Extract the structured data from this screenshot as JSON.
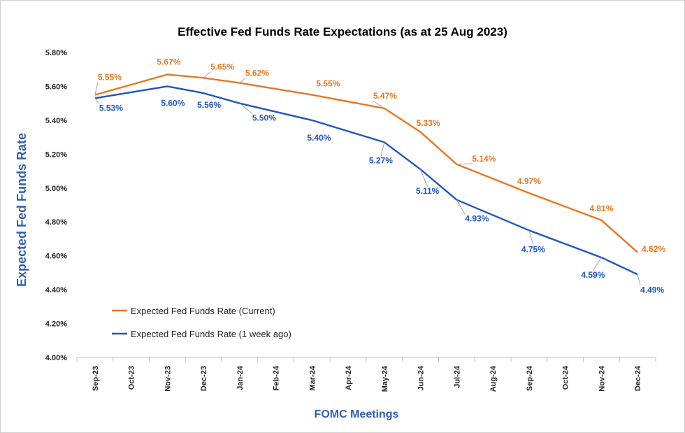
{
  "chart_data": {
    "type": "line",
    "title": "Effective Fed Funds Rate Expectations (as at 25 Aug 2023)",
    "xlabel": "FOMC Meetings",
    "ylabel": "Expected Fed Funds Rate",
    "ylim": [
      4.0,
      5.8
    ],
    "ytick_step": 0.2,
    "ytick_labels": [
      "4.00%",
      "4.20%",
      "4.40%",
      "4.60%",
      "4.80%",
      "5.00%",
      "5.20%",
      "5.40%",
      "5.60%",
      "5.80%"
    ],
    "categories": [
      "Sep-23",
      "Oct-23",
      "Nov-23",
      "Dec-23",
      "Jan-24",
      "Feb-24",
      "Mar-24",
      "Apr-24",
      "May-24",
      "Jun-24",
      "Jul-24",
      "Aug-24",
      "Sep-24",
      "Oct-24",
      "Nov-24",
      "Dec-24"
    ],
    "grid": false,
    "legend_position": "bottom-left",
    "series": [
      {
        "name": "Expected Fed Funds Rate (Current)",
        "color": "#e87722",
        "points": [
          {
            "category": "Sep-23",
            "value": 5.55,
            "label": "5.55%"
          },
          {
            "category": "Nov-23",
            "value": 5.67,
            "label": "5.67%"
          },
          {
            "category": "Dec-23",
            "value": 5.65,
            "label": "5.65%"
          },
          {
            "category": "Jan-24",
            "value": 5.62,
            "label": "5.62%"
          },
          {
            "category": "Mar-24",
            "value": 5.55,
            "label": "5.55%"
          },
          {
            "category": "May-24",
            "value": 5.47,
            "label": "5.47%"
          },
          {
            "category": "Jun-24",
            "value": 5.33,
            "label": "5.33%"
          },
          {
            "category": "Jul-24",
            "value": 5.14,
            "label": "5.14%"
          },
          {
            "category": "Sep-24",
            "value": 4.97,
            "label": "4.97%"
          },
          {
            "category": "Nov-24",
            "value": 4.81,
            "label": "4.81%"
          },
          {
            "category": "Dec-24",
            "value": 4.62,
            "label": "4.62%"
          }
        ]
      },
      {
        "name": "Expected Fed Funds Rate (1 week ago)",
        "color": "#2055c0",
        "points": [
          {
            "category": "Sep-23",
            "value": 5.53,
            "label": "5.53%"
          },
          {
            "category": "Nov-23",
            "value": 5.6,
            "label": "5.60%"
          },
          {
            "category": "Dec-23",
            "value": 5.56,
            "label": "5.56%"
          },
          {
            "category": "Jan-24",
            "value": 5.5,
            "label": "5.50%"
          },
          {
            "category": "Mar-24",
            "value": 5.4,
            "label": "5.40%"
          },
          {
            "category": "May-24",
            "value": 5.27,
            "label": "5.27%"
          },
          {
            "category": "Jun-24",
            "value": 5.11,
            "label": "5.11%"
          },
          {
            "category": "Jul-24",
            "value": 4.93,
            "label": "4.93%"
          },
          {
            "category": "Sep-24",
            "value": 4.75,
            "label": "4.75%"
          },
          {
            "category": "Nov-24",
            "value": 4.59,
            "label": "4.59%"
          },
          {
            "category": "Dec-24",
            "value": 4.49,
            "label": "4.49%"
          }
        ]
      }
    ]
  }
}
